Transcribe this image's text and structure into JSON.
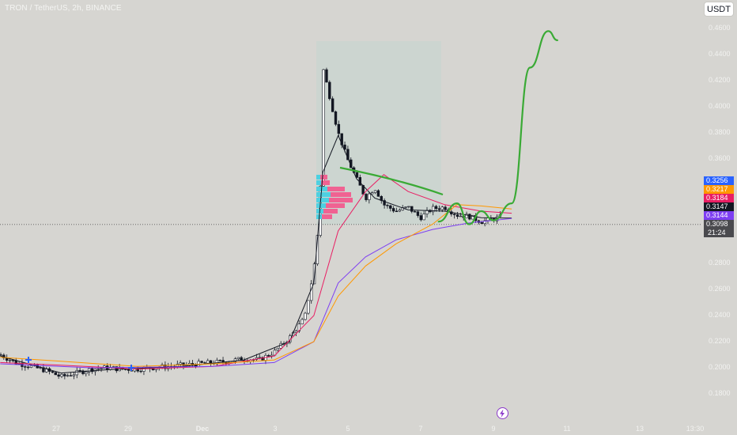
{
  "header": {
    "title": "TRON / TetherUS, 2h, BINANCE"
  },
  "currency_button": {
    "label": "USDT"
  },
  "price_axis": [
    "0.4600",
    "0.4400",
    "0.4200",
    "0.4000",
    "0.3800",
    "0.3600",
    "0.2800",
    "0.2600",
    "0.2400",
    "0.2200",
    "0.2000",
    "0.1800"
  ],
  "price_labels": [
    {
      "text": "0.3256",
      "color": "#2962ff"
    },
    {
      "text": "0.3217",
      "color": "#ff9800"
    },
    {
      "text": "0.3184",
      "color": "#e91e63"
    },
    {
      "text": "0.3147",
      "color": "#131722"
    },
    {
      "text": "0.3144",
      "color": "#7e3ff2"
    },
    {
      "text": "0.3098",
      "color": "#4a4a4e"
    }
  ],
  "countdown": "21:24",
  "date_axis": [
    {
      "text": "27",
      "bold": false
    },
    {
      "text": "29",
      "bold": false
    },
    {
      "text": "Dec",
      "bold": true
    },
    {
      "text": "3",
      "bold": false
    },
    {
      "text": "5",
      "bold": false
    },
    {
      "text": "7",
      "bold": false
    },
    {
      "text": "9",
      "bold": false
    },
    {
      "text": "11",
      "bold": false
    },
    {
      "text": "13",
      "bold": false
    },
    {
      "text": "13:30",
      "bold": false
    }
  ],
  "chart_data": {
    "type": "candlestick",
    "symbol": "TRON / TetherUS",
    "interval": "2h",
    "exchange": "BINANCE",
    "ylim": [
      0.17,
      0.47
    ],
    "last_price": 0.3098,
    "close_series": [
      [
        "Nov 25 12:00",
        0.21
      ],
      [
        "Nov 25 22:00",
        0.204
      ],
      [
        "Nov 26 08:00",
        0.201
      ],
      [
        "Nov 26 18:00",
        0.198
      ],
      [
        "Nov 27 04:00",
        0.193
      ],
      [
        "Nov 27 14:00",
        0.196
      ],
      [
        "Nov 28 00:00",
        0.199
      ],
      [
        "Nov 28 10:00",
        0.2
      ],
      [
        "Nov 28 20:00",
        0.199
      ],
      [
        "Nov 29 06:00",
        0.199
      ],
      [
        "Nov 29 16:00",
        0.2
      ],
      [
        "Nov 30 02:00",
        0.201
      ],
      [
        "Nov 30 12:00",
        0.202
      ],
      [
        "Nov 30 22:00",
        0.203
      ],
      [
        "Dec 1 08:00",
        0.204
      ],
      [
        "Dec 1 18:00",
        0.205
      ],
      [
        "Dec 2 04:00",
        0.207
      ],
      [
        "Dec 2 14:00",
        0.206
      ],
      [
        "Dec 3 00:00",
        0.212
      ],
      [
        "Dec 3 10:00",
        0.223
      ],
      [
        "Dec 3 20:00",
        0.238
      ],
      [
        "Dec 4 02:00",
        0.275
      ],
      [
        "Dec 4 06:00",
        0.32
      ],
      [
        "Dec 4 08:00",
        0.43
      ],
      [
        "Dec 4 12:00",
        0.41
      ],
      [
        "Dec 4 18:00",
        0.38
      ],
      [
        "Dec 5 00:00",
        0.36
      ],
      [
        "Dec 5 06:00",
        0.345
      ],
      [
        "Dec 5 12:00",
        0.33
      ],
      [
        "Dec 5 18:00",
        0.338
      ],
      [
        "Dec 6 00:00",
        0.325
      ],
      [
        "Dec 6 08:00",
        0.32
      ],
      [
        "Dec 6 16:00",
        0.323
      ],
      [
        "Dec 7 00:00",
        0.315
      ],
      [
        "Dec 7 08:00",
        0.322
      ],
      [
        "Dec 7 16:00",
        0.323
      ],
      [
        "Dec 8 00:00",
        0.317
      ],
      [
        "Dec 8 08:00",
        0.316
      ],
      [
        "Dec 8 16:00",
        0.312
      ],
      [
        "Dec 9 00:00",
        0.314
      ],
      [
        "Dec 9 06:00",
        0.316
      ],
      [
        "Dec 9 12:00",
        0.3098
      ]
    ],
    "moving_averages": [
      {
        "color": "#131722",
        "points": [
          [
            "Nov 25 12:00",
            0.209
          ],
          [
            "Nov 27 04:00",
            0.196
          ],
          [
            "Nov 28 10:00",
            0.1985
          ],
          [
            "Nov 30 12:00",
            0.201
          ],
          [
            "Dec 2 04:00",
            0.206
          ],
          [
            "Dec 3 10:00",
            0.22
          ],
          [
            "Dec 4 02:00",
            0.265
          ],
          [
            "Dec 4 08:00",
            0.35
          ],
          [
            "Dec 4 18:00",
            0.378
          ],
          [
            "Dec 5 06:00",
            0.345
          ],
          [
            "Dec 5 18:00",
            0.33
          ],
          [
            "Dec 6 16:00",
            0.321
          ],
          [
            "Dec 7 16:00",
            0.32
          ],
          [
            "Dec 8 16:00",
            0.315
          ],
          [
            "Dec 9 12:00",
            0.3147
          ]
        ]
      },
      {
        "color": "#e91e63",
        "points": [
          [
            "Nov 25 12:00",
            0.204
          ],
          [
            "Nov 27 04:00",
            0.202
          ],
          [
            "Nov 29 06:00",
            0.199
          ],
          [
            "Dec 1 08:00",
            0.201
          ],
          [
            "Dec 3 00:00",
            0.209
          ],
          [
            "Dec 4 02:00",
            0.24
          ],
          [
            "Dec 4 18:00",
            0.305
          ],
          [
            "Dec 5 12:00",
            0.335
          ],
          [
            "Dec 6 00:00",
            0.348
          ],
          [
            "Dec 6 16:00",
            0.335
          ],
          [
            "Dec 7 16:00",
            0.325
          ],
          [
            "Dec 8 16:00",
            0.32
          ],
          [
            "Dec 9 12:00",
            0.3184
          ]
        ]
      },
      {
        "color": "#7e3ff2",
        "points": [
          [
            "Nov 25 12:00",
            0.203
          ],
          [
            "Nov 28 00:00",
            0.2
          ],
          [
            "Dec 1 08:00",
            0.201
          ],
          [
            "Dec 3 00:00",
            0.204
          ],
          [
            "Dec 4 02:00",
            0.22
          ],
          [
            "Dec 4 18:00",
            0.265
          ],
          [
            "Dec 5 12:00",
            0.285
          ],
          [
            "Dec 6 08:00",
            0.298
          ],
          [
            "Dec 7 08:00",
            0.306
          ],
          [
            "Dec 8 08:00",
            0.311
          ],
          [
            "Dec 9 12:00",
            0.3144
          ]
        ]
      },
      {
        "color": "#ff9800",
        "points": [
          [
            "Nov 25 12:00",
            0.208
          ],
          [
            "Nov 27 04:00",
            0.205
          ],
          [
            "Nov 29 06:00",
            0.201
          ],
          [
            "Dec 1 08:00",
            0.203
          ],
          [
            "Dec 3 00:00",
            0.206
          ],
          [
            "Dec 4 02:00",
            0.22
          ],
          [
            "Dec 4 18:00",
            0.255
          ],
          [
            "Dec 5 12:00",
            0.278
          ],
          [
            "Dec 6 08:00",
            0.295
          ],
          [
            "Dec 7 08:00",
            0.31
          ],
          [
            "Dec 8 00:00",
            0.325
          ],
          [
            "Dec 8 16:00",
            0.324
          ],
          [
            "Dec 9 12:00",
            0.3217
          ]
        ]
      }
    ],
    "prediction_path": [
      [
        "Dec 7 12:00",
        0.312
      ],
      [
        "Dec 8 00:00",
        0.326
      ],
      [
        "Dec 8 08:00",
        0.31
      ],
      [
        "Dec 8 16:00",
        0.32
      ],
      [
        "Dec 9 00:00",
        0.313
      ],
      [
        "Dec 9 12:00",
        0.326
      ],
      [
        "Dec 10 00:00",
        0.43
      ],
      [
        "Dec 10 12:00",
        0.458
      ],
      [
        "Dec 10 18:00",
        0.451
      ]
    ],
    "grid": false,
    "legend": "none"
  },
  "colors": {
    "background": "#d6d5d1",
    "up": "#ffffff",
    "down": "#131722",
    "prediction": "#3aaa35",
    "volume_profile_up": "#4dd0e1",
    "volume_profile_down": "#f06292",
    "range_box": "#c8d4cf"
  },
  "icons": {
    "lightning": "lightning-icon"
  }
}
